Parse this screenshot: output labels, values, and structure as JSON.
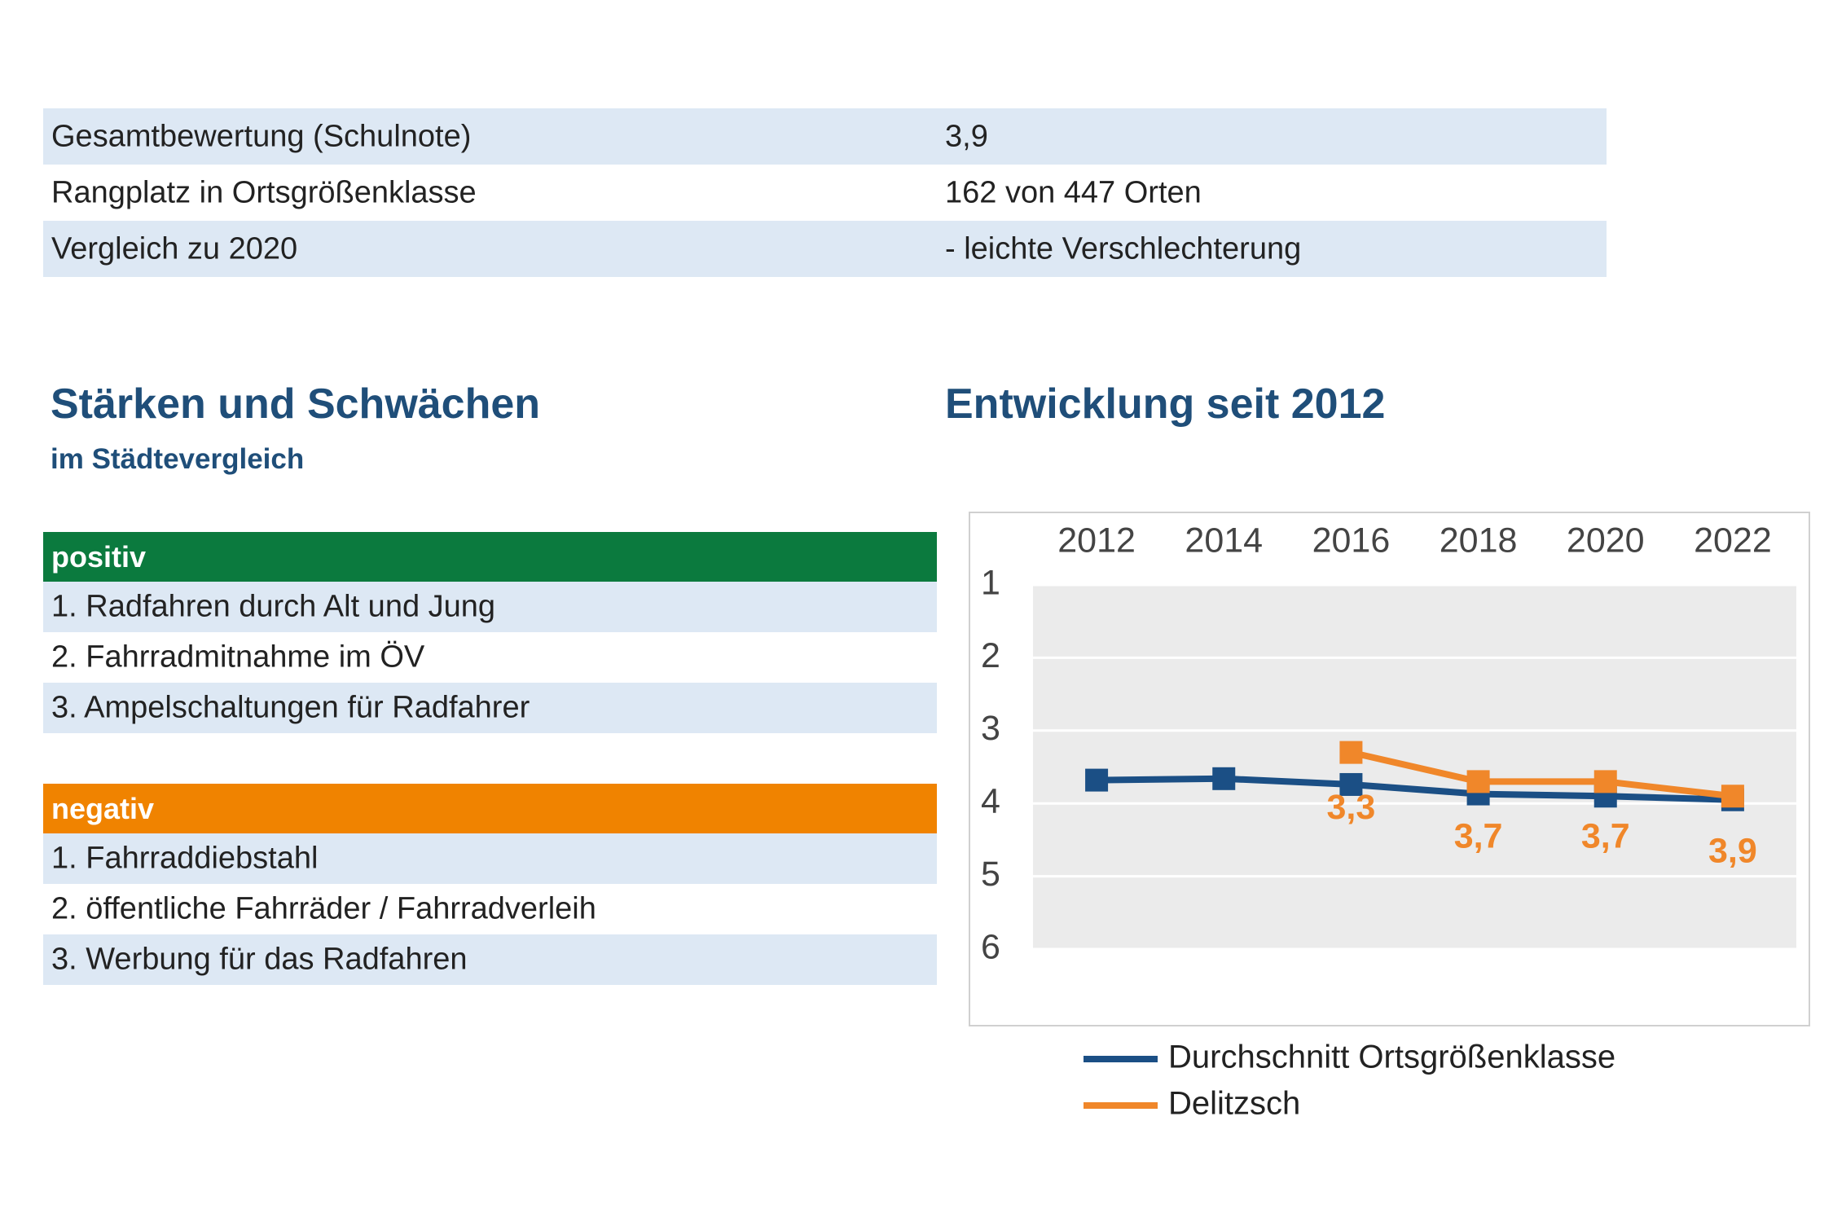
{
  "summary": {
    "rows": [
      [
        "Gesamtbewertung (Schulnote)",
        "3,9"
      ],
      [
        "Rangplatz in Ortsgrößenklasse",
        "162 von 447 Orten"
      ],
      [
        "Vergleich zu 2020",
        "- leichte Verschlechterung"
      ]
    ]
  },
  "strengths": {
    "title": "Stärken und Schwächen",
    "subtitle": "im Städtevergleich",
    "positive": {
      "label": "positiv",
      "items": [
        "1. Radfahren durch Alt und Jung",
        "2. Fahrradmitnahme im ÖV",
        "3. Ampelschaltungen für Radfahrer"
      ]
    },
    "negative": {
      "label": "negativ",
      "items": [
        "1. Fahrraddiebstahl",
        "2. öffentliche Fahrräder / Fahrradverleih",
        "3. Werbung für das Radfahren"
      ]
    }
  },
  "chart_data": {
    "type": "line",
    "title": "Entwicklung seit 2012",
    "categories": [
      "2012",
      "2014",
      "2016",
      "2018",
      "2020",
      "2022"
    ],
    "ylim": [
      1,
      6
    ],
    "yticks": [
      1,
      2,
      3,
      4,
      5,
      6
    ],
    "y_inverted": true,
    "grid": true,
    "legend": "bottom",
    "series": [
      {
        "name": "Durchschnitt Ortsgrößenklasse",
        "color": "#1b4f85",
        "values": [
          3.68,
          3.66,
          3.74,
          3.87,
          3.9,
          3.95
        ]
      },
      {
        "name": "Delitzsch",
        "color": "#f0872a",
        "values": [
          null,
          null,
          3.3,
          3.7,
          3.7,
          3.9
        ],
        "value_labels": [
          null,
          null,
          "3,3",
          "3,7",
          "3,7",
          "3,9"
        ]
      }
    ]
  }
}
